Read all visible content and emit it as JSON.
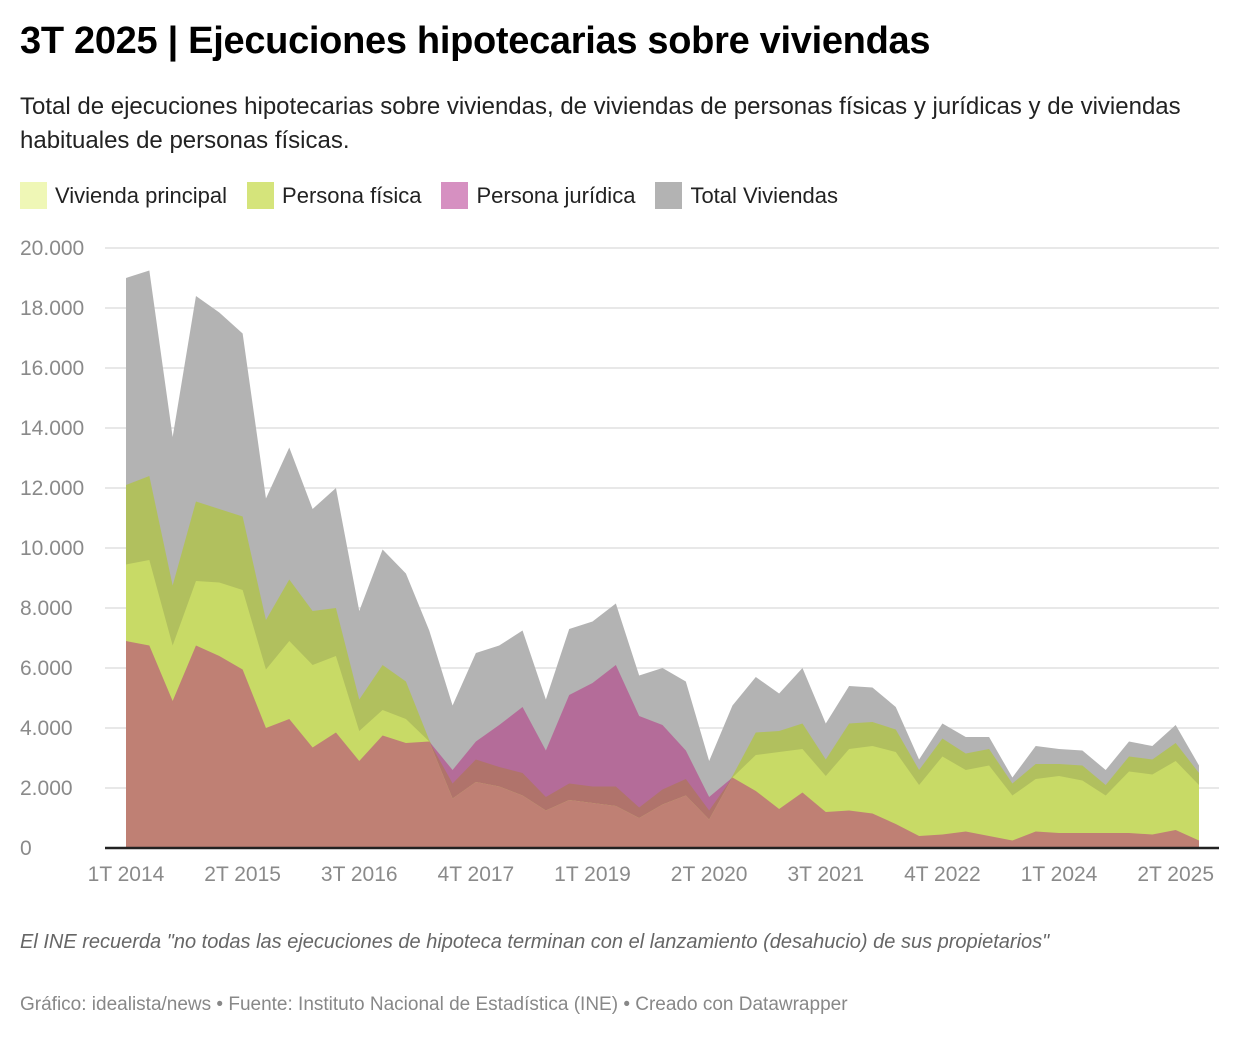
{
  "header": {
    "title": "3T 2025 | Ejecuciones hipotecarias sobre viviendas",
    "subtitle": "Total de ejecuciones hipotecarias sobre viviendas, de viviendas de personas físicas y jurídicas y de viviendas habituales de personas físicas."
  },
  "legend": [
    {
      "label": "Vivienda principal",
      "color": "#eff7b6"
    },
    {
      "label": "Persona física",
      "color": "#d5e47b"
    },
    {
      "label": "Persona jurídica",
      "color": "#d690c1"
    },
    {
      "label": "Total Viviendas",
      "color": "#b3b3b3"
    }
  ],
  "chart_data": {
    "type": "area",
    "title": "3T 2025 | Ejecuciones hipotecarias sobre viviendas",
    "xlabel": "",
    "ylabel": "",
    "ylim": [
      0,
      20000
    ],
    "grid": true,
    "legend_position": "top-left",
    "y_ticks": [
      "0",
      "2.000",
      "4.000",
      "6.000",
      "8.000",
      "10.000",
      "12.000",
      "14.000",
      "16.000",
      "18.000",
      "20.000"
    ],
    "x_tick_labels": [
      "1T 2014",
      "2T 2015",
      "3T 2016",
      "4T 2017",
      "1T 2019",
      "2T 2020",
      "3T 2021",
      "4T 2022",
      "1T 2024",
      "2T 2025"
    ],
    "x": [
      "1T 2014",
      "2T 2014",
      "3T 2014",
      "4T 2014",
      "1T 2015",
      "2T 2015",
      "3T 2015",
      "4T 2015",
      "1T 2016",
      "2T 2016",
      "3T 2016",
      "4T 2016",
      "1T 2017",
      "2T 2017",
      "3T 2017",
      "4T 2017",
      "1T 2018",
      "2T 2018",
      "3T 2018",
      "4T 2018",
      "1T 2019",
      "2T 2019",
      "3T 2019",
      "4T 2019",
      "1T 2020",
      "2T 2020",
      "3T 2020",
      "4T 2020",
      "1T 2021",
      "2T 2021",
      "3T 2021",
      "4T 2021",
      "1T 2022",
      "2T 2022",
      "3T 2022",
      "4T 2022",
      "1T 2023",
      "2T 2023",
      "3T 2023",
      "4T 2023",
      "1T 2024",
      "2T 2024",
      "3T 2024",
      "4T 2024",
      "1T 2025",
      "2T 2025",
      "3T 2025"
    ],
    "series": [
      {
        "name": "Total Viviendas",
        "color": "#b3b3b3",
        "values": [
          19000,
          19250,
          13700,
          18400,
          17850,
          17150,
          11650,
          13350,
          11300,
          12000,
          7900,
          9950,
          9150,
          7250,
          4750,
          6500,
          6750,
          7250,
          4950,
          7300,
          7550,
          8150,
          5750,
          6000,
          5550,
          2900,
          4750,
          5700,
          5150,
          6000,
          4150,
          5400,
          5350,
          4700,
          2950,
          4150,
          3700,
          3700,
          2350,
          3400,
          3300,
          3250,
          2600,
          3550,
          3400,
          4100,
          2750
        ]
      },
      {
        "name": "Persona física",
        "color": "#d5e47b",
        "values": [
          12100,
          12400,
          8750,
          11550,
          11300,
          11050,
          7600,
          8950,
          7900,
          8000,
          4950,
          6100,
          5550,
          3600,
          2150,
          2950,
          2700,
          2500,
          1700,
          2150,
          2050,
          2050,
          1350,
          1950,
          2300,
          1250,
          2400,
          3850,
          3900,
          4150,
          2950,
          4150,
          4200,
          3950,
          2600,
          3650,
          3150,
          3300,
          2150,
          2800,
          2800,
          2750,
          2100,
          3050,
          2950,
          3500,
          2500
        ]
      },
      {
        "name": "Persona jurídica",
        "color": "#d690c1",
        "values": [
          6900,
          6750,
          4900,
          6750,
          6400,
          5950,
          4000,
          4300,
          3350,
          3850,
          2900,
          3750,
          3500,
          3550,
          2600,
          3550,
          4100,
          4700,
          3250,
          5100,
          5500,
          6100,
          4400,
          4100,
          3250,
          1700,
          2350,
          1900,
          1300,
          1850,
          1200,
          1250,
          1150,
          800,
          400,
          450,
          550,
          400,
          250,
          550,
          500,
          500,
          500,
          500,
          450,
          600,
          250
        ]
      },
      {
        "name": "Vivienda principal",
        "color": "#eff7b6",
        "values": [
          9450,
          9600,
          6750,
          8900,
          8850,
          8600,
          5950,
          6900,
          6100,
          6400,
          3900,
          4600,
          4300,
          3550,
          1650,
          2200,
          2050,
          1750,
          1250,
          1600,
          1500,
          1400,
          1000,
          1450,
          1750,
          950,
          2350,
          3100,
          3200,
          3300,
          2400,
          3300,
          3400,
          3200,
          2100,
          3050,
          2600,
          2750,
          1750,
          2300,
          2400,
          2250,
          1750,
          2550,
          2450,
          2900,
          2100
        ]
      }
    ]
  },
  "note": "El INE recuerda \"no todas las ejecuciones de hipoteca terminan con el lanzamiento (desahucio) de sus propietarios\"",
  "footer": "Gráfico: idealista/news • Fuente: Instituto Nacional de Estadística (INE) • Creado con Datawrapper"
}
